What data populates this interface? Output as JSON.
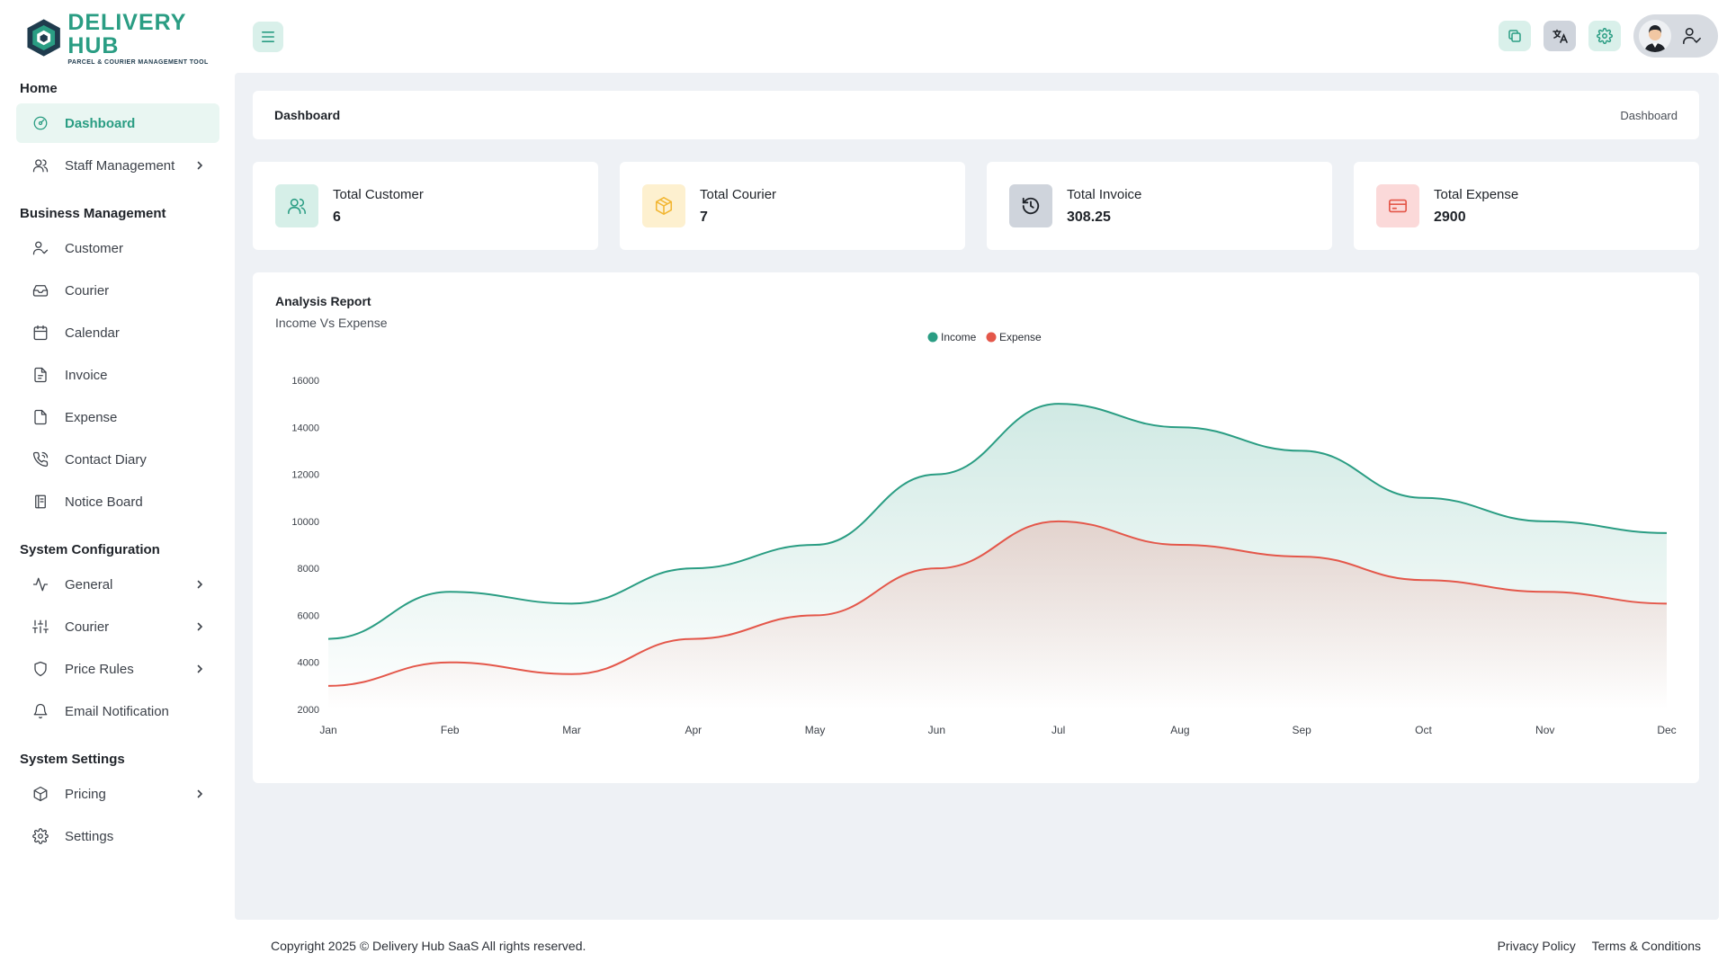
{
  "brand": {
    "name": "DELIVERY HUB",
    "tagline": "PARCEL & COURIER MANAGEMENT TOOL",
    "accent": "#2a9d83"
  },
  "sidebar": {
    "sections": [
      {
        "title": "Home",
        "items": [
          {
            "label": "Dashboard",
            "icon": "dashboard-icon",
            "active": true
          },
          {
            "label": "Staff Management",
            "icon": "users-icon",
            "chevron": true
          }
        ]
      },
      {
        "title": "Business Management",
        "items": [
          {
            "label": "Customer",
            "icon": "user-check-icon"
          },
          {
            "label": "Courier",
            "icon": "inbox-icon"
          },
          {
            "label": "Calendar",
            "icon": "calendar-icon"
          },
          {
            "label": "Invoice",
            "icon": "file-text-icon"
          },
          {
            "label": "Expense",
            "icon": "file-icon"
          },
          {
            "label": "Contact Diary",
            "icon": "phone-icon"
          },
          {
            "label": "Notice Board",
            "icon": "book-icon"
          }
        ]
      },
      {
        "title": "System Configuration",
        "items": [
          {
            "label": "General",
            "icon": "activity-icon",
            "chevron": true
          },
          {
            "label": "Courier",
            "icon": "sliders-icon",
            "chevron": true
          },
          {
            "label": "Price Rules",
            "icon": "shield-icon",
            "chevron": true
          },
          {
            "label": "Email Notification",
            "icon": "bell-icon"
          }
        ]
      },
      {
        "title": "System Settings",
        "items": [
          {
            "label": "Pricing",
            "icon": "package-icon",
            "chevron": true
          },
          {
            "label": "Settings",
            "icon": "gear-icon"
          }
        ]
      }
    ]
  },
  "breadcrumb": {
    "title": "Dashboard",
    "current": "Dashboard"
  },
  "stats": [
    {
      "label": "Total Customer",
      "value": "6",
      "icon": "users-icon",
      "bg": "#d6efe8",
      "fg": "#2a9d83"
    },
    {
      "label": "Total Courier",
      "value": "7",
      "icon": "box-icon",
      "bg": "#fdf0cf",
      "fg": "#f2b632"
    },
    {
      "label": "Total Invoice",
      "value": "308.25",
      "icon": "history-icon",
      "bg": "#cfd4dc",
      "fg": "#1f2329"
    },
    {
      "label": "Total Expense",
      "value": "2900",
      "icon": "credit-card-icon",
      "bg": "#fbd9d9",
      "fg": "#e4574a"
    }
  ],
  "report": {
    "title": "Analysis Report",
    "subtitle": "Income Vs Expense"
  },
  "chart_data": {
    "type": "area",
    "categories": [
      "Jan",
      "Feb",
      "Mar",
      "Apr",
      "May",
      "Jun",
      "Jul",
      "Aug",
      "Sep",
      "Oct",
      "Nov",
      "Dec"
    ],
    "series": [
      {
        "name": "Income",
        "color": "#2a9d83",
        "values": [
          5000,
          7000,
          6500,
          8000,
          9000,
          12000,
          15000,
          14000,
          13000,
          11000,
          10000,
          9500
        ]
      },
      {
        "name": "Expense",
        "color": "#e4574a",
        "values": [
          3000,
          4000,
          3500,
          5000,
          6000,
          8000,
          10000,
          9000,
          8500,
          7500,
          7000,
          6500
        ]
      }
    ],
    "yticks": [
      2000,
      4000,
      6000,
      8000,
      10000,
      12000,
      14000,
      16000
    ],
    "ylim": [
      2000,
      16000
    ],
    "grid": false,
    "legend": "top-center"
  },
  "footer": {
    "copyright": "Copyright 2025 © Delivery Hub SaaS All rights reserved.",
    "links": [
      "Privacy Policy",
      "Terms & Conditions"
    ]
  }
}
